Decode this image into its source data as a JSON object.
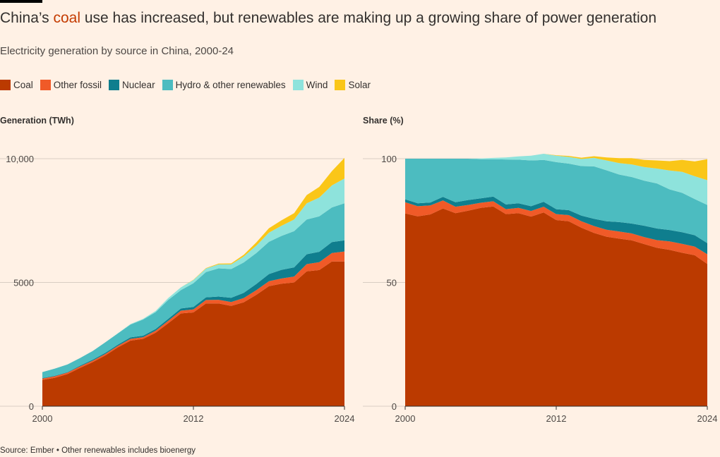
{
  "title_pre": "China’s ",
  "title_hl": "coal",
  "title_post": " use has increased, but renewables are making up a growing share of power generation",
  "subtitle": "Electricity generation by source in China, 2000-24",
  "source": "Source: Ember • Other renewables includes bioenergy",
  "colors": {
    "Coal": "#bb3a00",
    "Other fossil": "#f05a28",
    "Nuclear": "#0f7e8e",
    "Hydro & other renewables": "#4cbcc0",
    "Wind": "#8ee3dc",
    "Solar": "#fac618",
    "highlight": "#c43b00",
    "background": "#fff1e5"
  },
  "legend": [
    "Coal",
    "Other fossil",
    "Nuclear",
    "Hydro & other renewables",
    "Wind",
    "Solar"
  ],
  "chart_data": [
    {
      "type": "area",
      "stacked": true,
      "title": "Generation (TWh)",
      "x": [
        2000,
        2001,
        2002,
        2003,
        2004,
        2005,
        2006,
        2007,
        2008,
        2009,
        2010,
        2011,
        2012,
        2013,
        2014,
        2015,
        2016,
        2017,
        2018,
        2019,
        2020,
        2021,
        2022,
        2023,
        2024
      ],
      "x_ticks": [
        "2000",
        "2012",
        "2024"
      ],
      "y_ticks": [
        "0",
        "5000",
        "10,000"
      ],
      "ylim": [
        0,
        10000
      ],
      "grid": true,
      "series": [
        {
          "name": "Coal",
          "values": [
            1060,
            1150,
            1300,
            1550,
            1780,
            2050,
            2380,
            2650,
            2720,
            2970,
            3350,
            3750,
            3790,
            4150,
            4150,
            4050,
            4200,
            4500,
            4850,
            4950,
            5000,
            5450,
            5500,
            5850,
            5850
          ]
        },
        {
          "name": "Other fossil",
          "values": [
            60,
            60,
            60,
            60,
            60,
            60,
            60,
            70,
            70,
            80,
            100,
            110,
            120,
            140,
            150,
            160,
            170,
            190,
            200,
            210,
            240,
            290,
            320,
            340,
            400
          ]
        },
        {
          "name": "Nuclear",
          "values": [
            20,
            20,
            20,
            30,
            40,
            50,
            50,
            60,
            60,
            70,
            80,
            90,
            100,
            110,
            130,
            170,
            210,
            250,
            290,
            350,
            370,
            400,
            420,
            440,
            450
          ]
        },
        {
          "name": "Hydro & other renewables",
          "values": [
            240,
            290,
            310,
            310,
            350,
            420,
            450,
            520,
            650,
            680,
            760,
            740,
            960,
            1020,
            1140,
            1160,
            1230,
            1250,
            1300,
            1370,
            1460,
            1400,
            1430,
            1400,
            1500
          ]
        },
        {
          "name": "Wind",
          "values": [
            0,
            0,
            0,
            0,
            0,
            0,
            10,
            20,
            30,
            50,
            80,
            110,
            130,
            140,
            160,
            190,
            240,
            300,
            370,
            410,
            470,
            660,
            760,
            890,
            1000
          ]
        },
        {
          "name": "Solar",
          "values": [
            0,
            0,
            0,
            0,
            0,
            0,
            0,
            0,
            0,
            0,
            0,
            0,
            10,
            20,
            30,
            40,
            70,
            130,
            180,
            220,
            260,
            330,
            430,
            580,
            830
          ]
        }
      ]
    },
    {
      "type": "area",
      "stacked": true,
      "title": "Share (%)",
      "x": [
        2000,
        2001,
        2002,
        2003,
        2004,
        2005,
        2006,
        2007,
        2008,
        2009,
        2010,
        2011,
        2012,
        2013,
        2014,
        2015,
        2016,
        2017,
        2018,
        2019,
        2020,
        2021,
        2022,
        2023,
        2024
      ],
      "x_ticks": [
        "2000",
        "2012",
        "2024"
      ],
      "y_ticks": [
        "0",
        "50",
        "100"
      ],
      "ylim": [
        0,
        100
      ],
      "grid": true,
      "series": [
        {
          "name": "Coal",
          "values": [
            77.9,
            76.7,
            77.5,
            79.9,
            78.0,
            79.0,
            80.1,
            80.7,
            77.6,
            78.0,
            76.6,
            78.3,
            75.2,
            74.7,
            72.1,
            70.0,
            68.5,
            67.7,
            67.0,
            65.5,
            64.0,
            63.2,
            62.0,
            61.0,
            57.5
          ]
        },
        {
          "name": "Other fossil",
          "values": [
            4.5,
            4.1,
            3.6,
            3.2,
            2.6,
            2.3,
            2.1,
            2.1,
            2.0,
            2.1,
            2.3,
            2.3,
            2.4,
            2.5,
            2.6,
            2.8,
            2.8,
            2.9,
            2.8,
            2.8,
            3.1,
            3.4,
            3.6,
            3.5,
            3.9
          ]
        },
        {
          "name": "Nuclear",
          "values": [
            1.2,
            1.2,
            1.2,
            1.5,
            1.8,
            2.0,
            1.8,
            1.9,
            1.9,
            1.9,
            1.9,
            2.0,
            2.0,
            2.0,
            2.3,
            2.9,
            3.4,
            3.8,
            4.0,
            4.6,
            4.7,
            4.6,
            4.7,
            4.6,
            4.5
          ]
        },
        {
          "name": "Hydro & other renewables",
          "values": [
            16.4,
            18.0,
            17.7,
            15.4,
            17.6,
            16.7,
            15.8,
            15.1,
            18.2,
            17.6,
            18.5,
            16.9,
            19.0,
            18.8,
            20.0,
            21.2,
            20.6,
            19.2,
            18.8,
            18.2,
            18.2,
            16.4,
            15.9,
            14.6,
            15.4
          ]
        },
        {
          "name": "Wind",
          "values": [
            0,
            0,
            0,
            0,
            0,
            0,
            0.3,
            0.5,
            0.8,
            1.3,
            1.9,
            2.5,
            2.6,
            2.7,
            2.9,
            3.4,
            4.0,
            4.6,
            5.1,
            5.5,
            6.0,
            7.6,
            8.5,
            9.2,
            10.0
          ]
        },
        {
          "name": "Solar",
          "values": [
            0,
            0,
            0,
            0,
            0,
            0,
            0,
            0,
            0,
            0,
            0,
            0,
            0.2,
            0.4,
            0.5,
            0.7,
            1.2,
            2.0,
            2.5,
            2.9,
            3.3,
            3.8,
            4.8,
            6.0,
            8.5
          ]
        }
      ]
    }
  ]
}
